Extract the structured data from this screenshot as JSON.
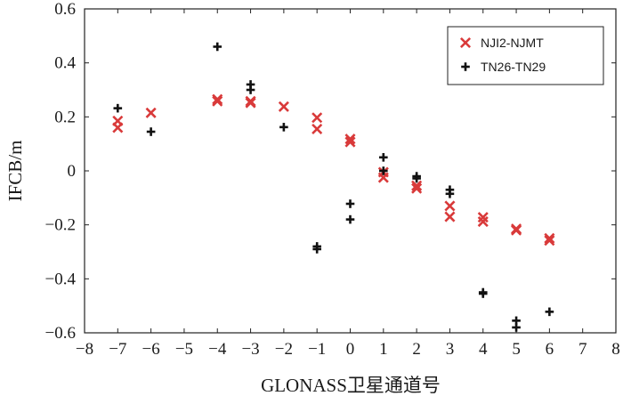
{
  "chart_data": {
    "type": "scatter",
    "title": "",
    "xlabel": "GLONASS卫星通道号",
    "ylabel": "IFCB/m",
    "xlim": [
      -8,
      8
    ],
    "ylim": [
      -0.6,
      0.6
    ],
    "xticks": [
      "−8",
      "−7",
      "−6",
      "−5",
      "−4",
      "−3",
      "−2",
      "−1",
      "0",
      "1",
      "2",
      "3",
      "4",
      "5",
      "6",
      "7",
      "8"
    ],
    "yticks": [
      "−0.6",
      "−0.4",
      "−0.2",
      "0",
      "0.2",
      "0.4",
      "0.6"
    ],
    "grid": false,
    "legend_position": "top-right",
    "series": [
      {
        "name": "NJI2-NJMT",
        "marker": "x",
        "color": "#d93a3a",
        "points": [
          [
            -7,
            0.185
          ],
          [
            -7,
            0.16
          ],
          [
            -6,
            0.215
          ],
          [
            -4,
            0.265
          ],
          [
            -4,
            0.258
          ],
          [
            -3,
            0.258
          ],
          [
            -3,
            0.252
          ],
          [
            -2,
            0.238
          ],
          [
            -1,
            0.197
          ],
          [
            -1,
            0.155
          ],
          [
            0,
            0.118
          ],
          [
            0,
            0.107
          ],
          [
            1,
            -0.005
          ],
          [
            1,
            -0.025
          ],
          [
            2,
            -0.055
          ],
          [
            2,
            -0.065
          ],
          [
            3,
            -0.13
          ],
          [
            3,
            -0.17
          ],
          [
            4,
            -0.172
          ],
          [
            4,
            -0.188
          ],
          [
            5,
            -0.215
          ],
          [
            5,
            -0.22
          ],
          [
            6,
            -0.25
          ],
          [
            6,
            -0.258
          ]
        ]
      },
      {
        "name": "TN26-TN29",
        "marker": "+",
        "color": "#111111",
        "points": [
          [
            -7,
            0.232
          ],
          [
            -6,
            0.145
          ],
          [
            -4,
            0.46
          ],
          [
            -3,
            0.32
          ],
          [
            -3,
            0.3
          ],
          [
            -2,
            0.162
          ],
          [
            -1,
            -0.28
          ],
          [
            -1,
            -0.29
          ],
          [
            0,
            -0.122
          ],
          [
            0,
            -0.18
          ],
          [
            1,
            0.05
          ],
          [
            1,
            0.0
          ],
          [
            2,
            -0.02
          ],
          [
            2,
            -0.028
          ],
          [
            3,
            -0.07
          ],
          [
            3,
            -0.085
          ],
          [
            4,
            -0.45
          ],
          [
            4,
            -0.455
          ],
          [
            5,
            -0.555
          ],
          [
            5,
            -0.58
          ],
          [
            6,
            -0.522
          ]
        ]
      }
    ]
  }
}
